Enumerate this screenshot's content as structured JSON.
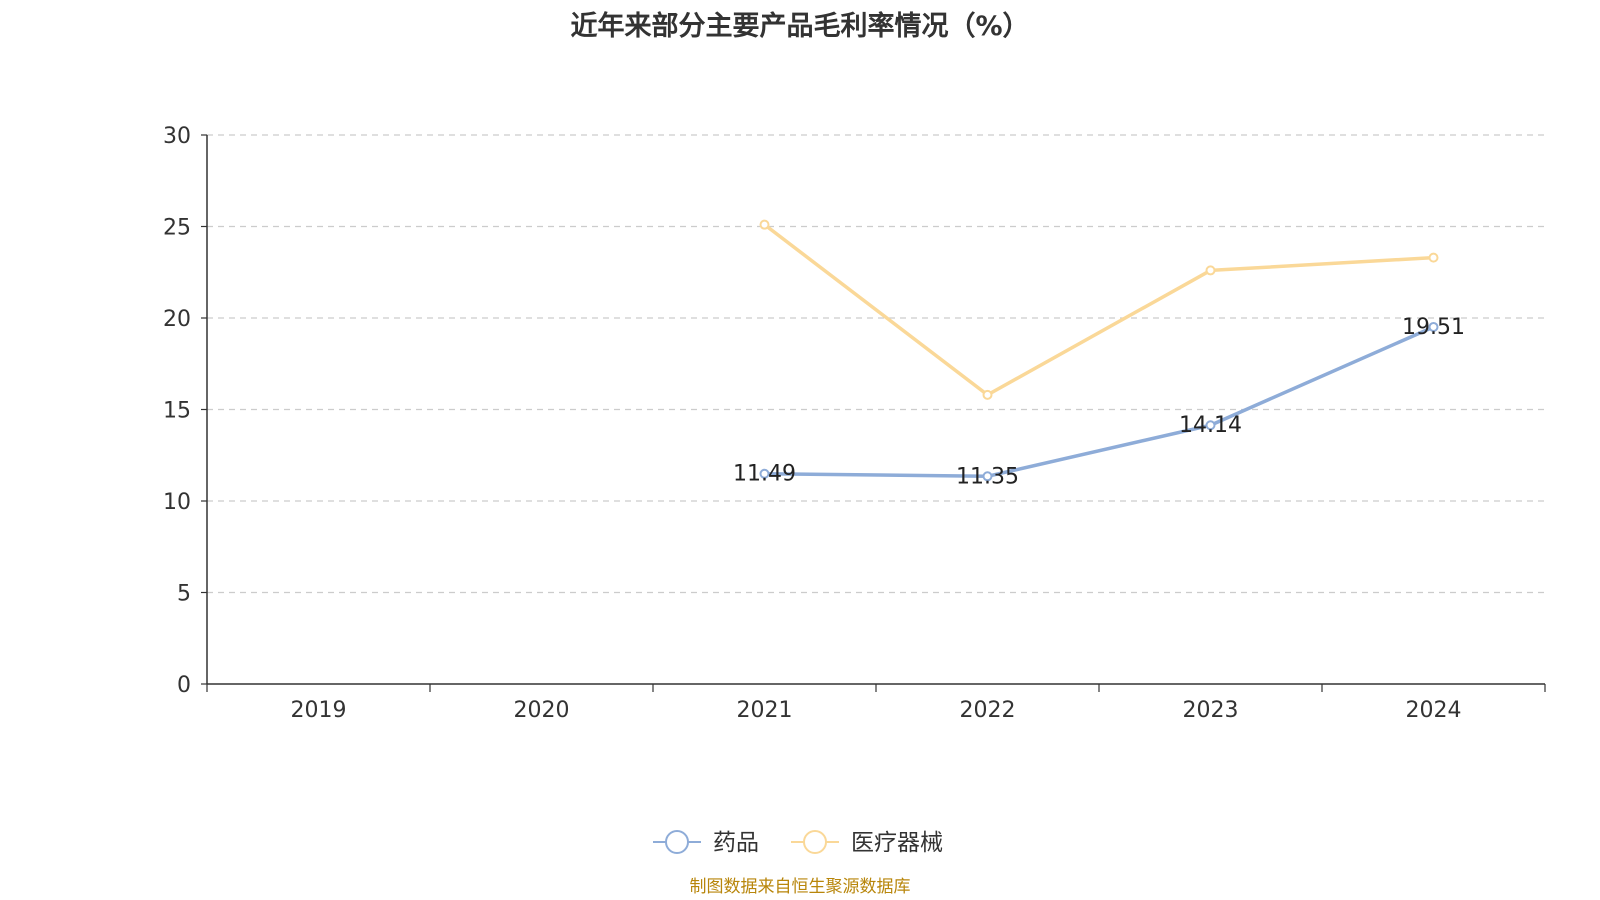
{
  "chart_data": {
    "type": "line",
    "title": "近年来部分主要产品毛利率情况（%）",
    "xlabel": "",
    "ylabel": "",
    "categories": [
      "2019",
      "2020",
      "2021",
      "2022",
      "2023",
      "2024"
    ],
    "ylim": [
      0,
      30
    ],
    "yticks": [
      0,
      5,
      10,
      15,
      20,
      25,
      30
    ],
    "grid": true,
    "legend_position": "bottom-center",
    "series": [
      {
        "name": "药品",
        "color": "#8eacd8",
        "values": [
          null,
          null,
          11.49,
          11.35,
          14.14,
          19.51
        ],
        "labels": [
          "",
          "",
          "11.49",
          "11.35",
          "14.14",
          "19.51"
        ]
      },
      {
        "name": "医疗器械",
        "color": "#fad898",
        "values": [
          null,
          null,
          25.1,
          15.8,
          22.6,
          23.3
        ],
        "labels": [
          "",
          "",
          "",
          "",
          "",
          ""
        ]
      }
    ]
  },
  "source_text": "制图数据来自恒生聚源数据库"
}
